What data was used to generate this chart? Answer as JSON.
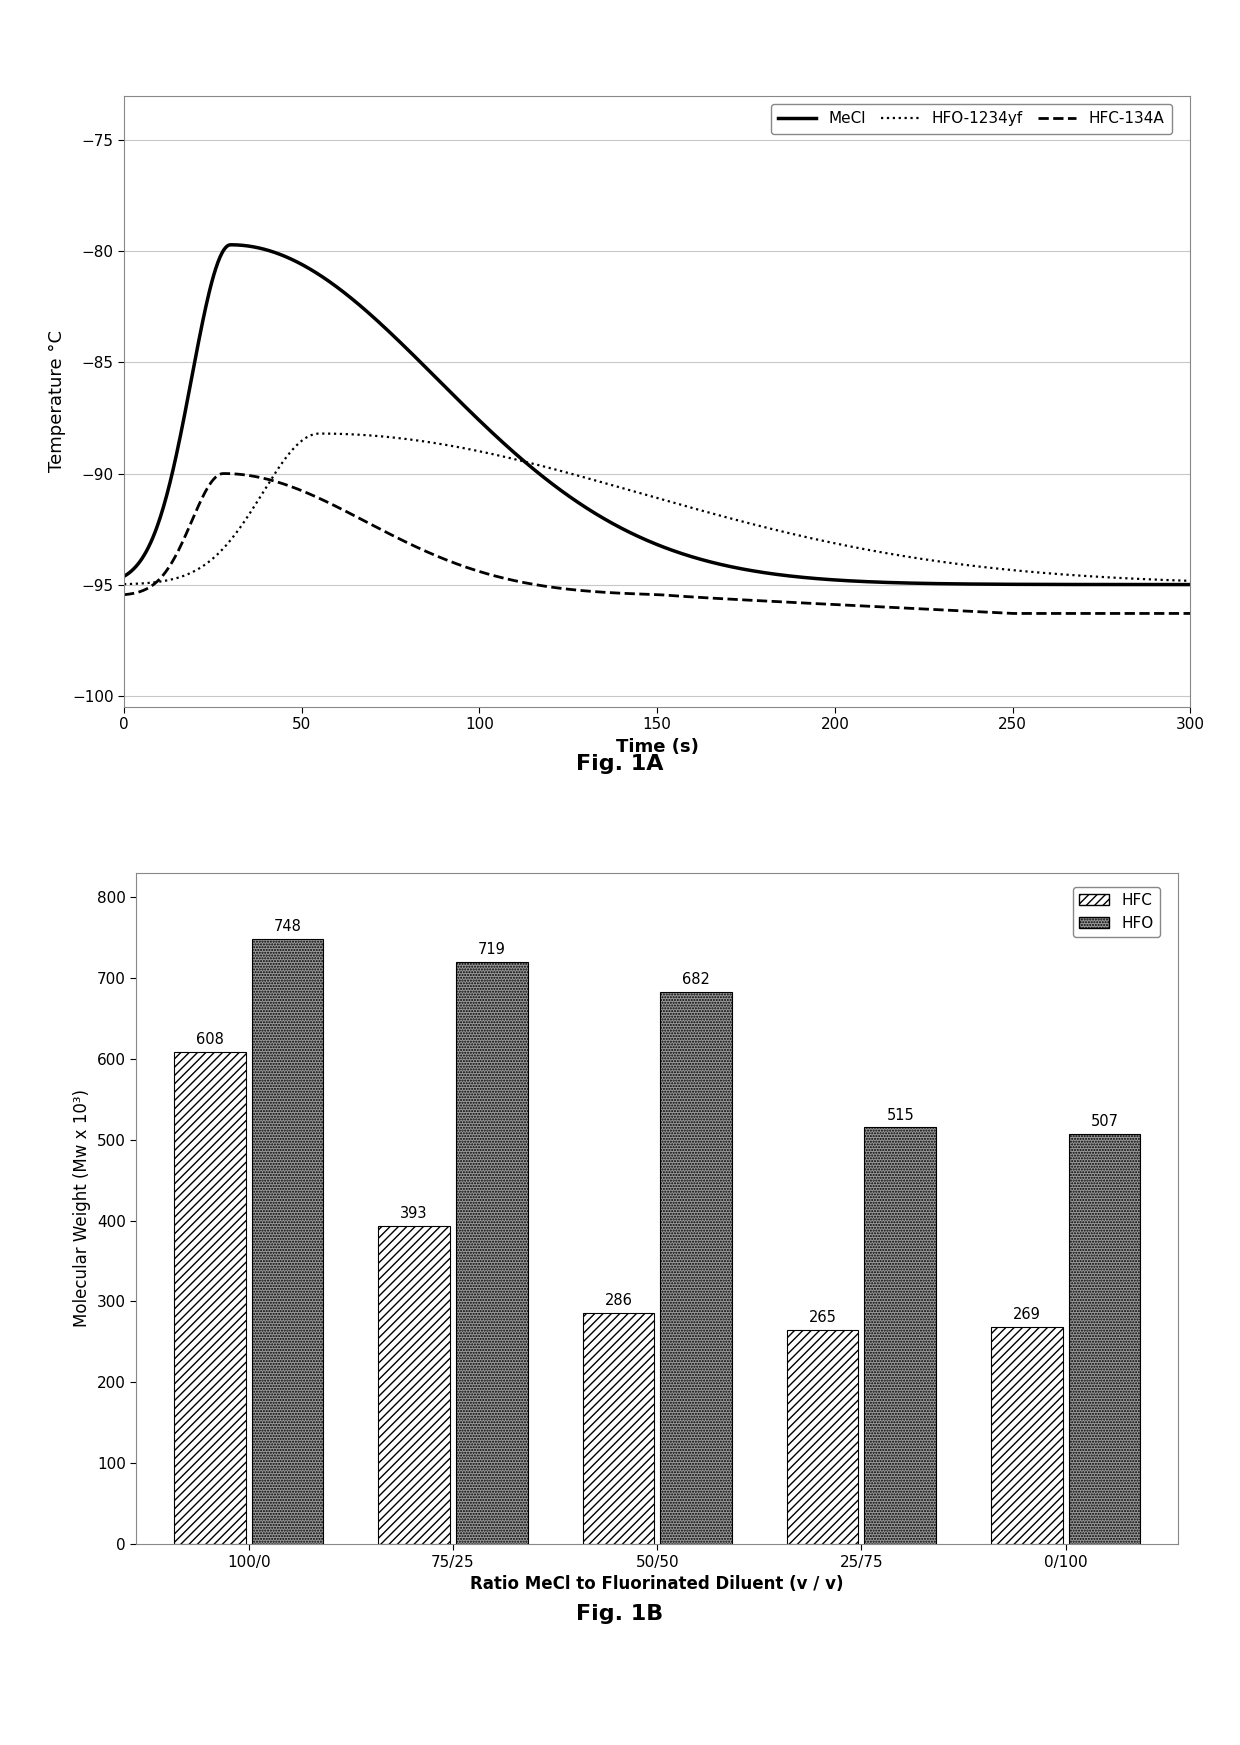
{
  "fig1a": {
    "xlabel": "Time (s)",
    "ylabel": "Temperature °C",
    "xlim": [
      0,
      300
    ],
    "ylim": [
      -100.5,
      -73
    ],
    "yticks": [
      -100,
      -95,
      -90,
      -85,
      -80,
      -75
    ],
    "xticks": [
      0,
      50,
      100,
      150,
      200,
      250,
      300
    ],
    "legend_labels": [
      "MeCl",
      "HFO-1234yf",
      "HFC-134A"
    ]
  },
  "fig1b": {
    "xlabel": "Ratio MeCl to Fluorinated Diluent (v / v)",
    "ylabel": "Molecular Weight (Mw x 10³)",
    "categories": [
      "100/0",
      "75/25",
      "50/50",
      "25/75",
      "0/100"
    ],
    "hfc_values": [
      608,
      393,
      286,
      265,
      269
    ],
    "hfo_values": [
      748,
      719,
      682,
      515,
      507
    ],
    "ylim": [
      0,
      830
    ],
    "yticks": [
      0,
      100,
      200,
      300,
      400,
      500,
      600,
      700,
      800
    ],
    "legend_labels": [
      "HFC",
      "HFO"
    ]
  },
  "fig1a_label": "Fig. 1A",
  "fig1b_label": "Fig. 1B",
  "background_color": "#f5f5f5"
}
